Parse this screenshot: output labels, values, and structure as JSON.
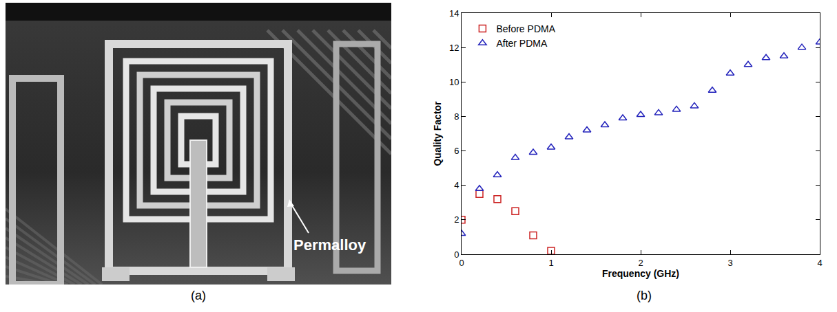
{
  "figure_a": {
    "panel_label": "(a)",
    "annotation": "Permalloy"
  },
  "chart_data": {
    "type": "scatter",
    "panel_label": "(b)",
    "x_label": "Frequency (GHz)",
    "y_label": "Quality Factor",
    "xlim": [
      0,
      4
    ],
    "xticks": [
      0,
      1,
      2,
      3,
      4
    ],
    "ylim": [
      0,
      14
    ],
    "yticks": [
      0,
      2,
      4,
      6,
      8,
      10,
      12,
      14
    ],
    "grid": false,
    "legend": "top left",
    "series": [
      {
        "name": "Before PDMA",
        "color": "#cc2222",
        "marker": "square-open",
        "x": [
          0,
          0.2,
          0.4,
          0.6,
          0.8,
          1.0
        ],
        "values": [
          2.0,
          3.5,
          3.2,
          2.5,
          1.1,
          0.2
        ]
      },
      {
        "name": "After PDMA",
        "color": "#2222bb",
        "marker": "triangle-up-open",
        "x": [
          0,
          0.2,
          0.4,
          0.6,
          0.8,
          1.0,
          1.2,
          1.4,
          1.6,
          1.8,
          2.0,
          2.2,
          2.4,
          2.6,
          2.8,
          3.0,
          3.2,
          3.4,
          3.6,
          3.8,
          4.0
        ],
        "values": [
          1.2,
          3.8,
          4.6,
          5.6,
          5.9,
          6.2,
          6.8,
          7.2,
          7.5,
          7.9,
          8.1,
          8.2,
          8.4,
          8.6,
          9.5,
          10.5,
          11.0,
          11.4,
          11.5,
          12.0,
          12.3
        ]
      }
    ]
  }
}
